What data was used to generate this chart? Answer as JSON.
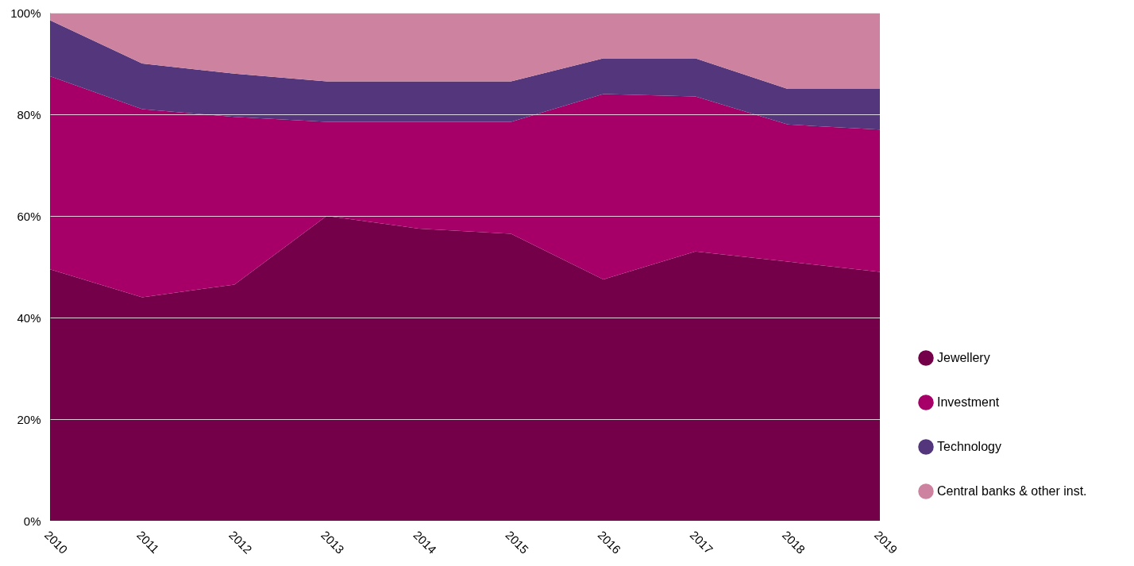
{
  "chart_data": {
    "type": "area",
    "stacked": true,
    "categories": [
      "2010",
      "2011",
      "2012",
      "2013",
      "2014",
      "2015",
      "2016",
      "2017",
      "2018",
      "2019"
    ],
    "series": [
      {
        "name": "Jewellery",
        "color": "#75004a",
        "values": [
          49.5,
          44,
          46.5,
          60,
          57.5,
          56.5,
          47.5,
          53,
          51,
          49
        ]
      },
      {
        "name": "Investment",
        "color": "#a60068",
        "values": [
          38,
          37,
          33,
          18.5,
          21,
          22,
          36.5,
          30.5,
          27,
          28
        ]
      },
      {
        "name": "Technology",
        "color": "#54367c",
        "values": [
          11,
          9,
          8.5,
          8,
          8,
          8,
          7,
          7.5,
          7,
          8
        ]
      },
      {
        "name": "Central banks & other inst.",
        "color": "#cd839f",
        "values": [
          1.5,
          10,
          12,
          13.5,
          13.5,
          13.5,
          9,
          9,
          15,
          15
        ]
      }
    ],
    "ylim": [
      0,
      100
    ],
    "yticks": [
      {
        "value": 0,
        "label": "0%"
      },
      {
        "value": 20,
        "label": "20%"
      },
      {
        "value": 40,
        "label": "40%"
      },
      {
        "value": 60,
        "label": "60%"
      },
      {
        "value": 80,
        "label": "80%"
      },
      {
        "value": 100,
        "label": "100%"
      }
    ],
    "grid": "y",
    "legend": "right"
  }
}
